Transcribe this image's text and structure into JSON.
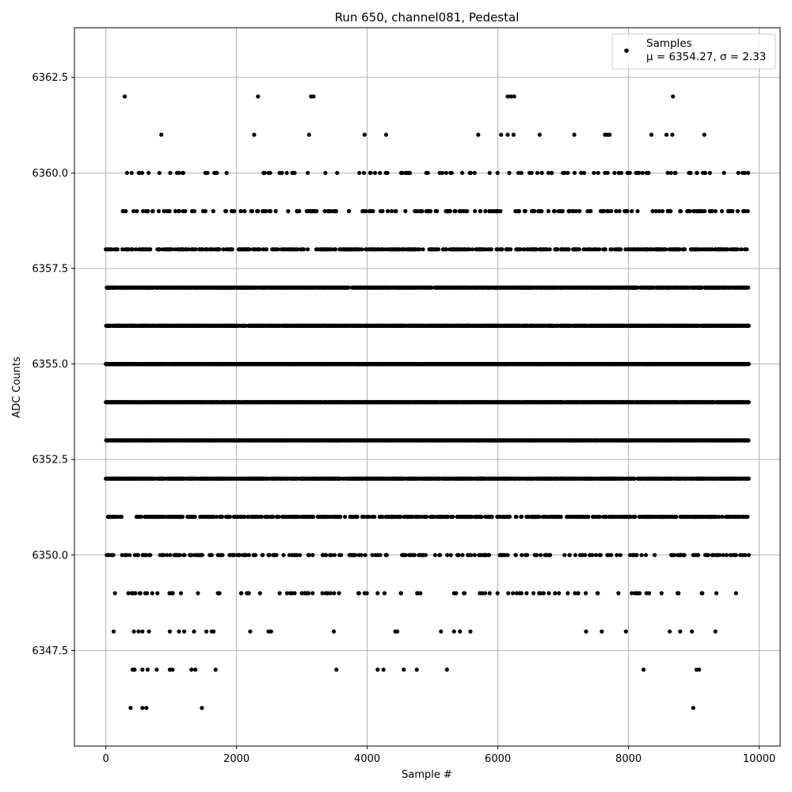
{
  "chart_data": {
    "type": "scatter",
    "title": "Run 650, channel081, Pedestal",
    "xlabel": "Sample #",
    "ylabel": "ADC Counts",
    "xlim": [
      -480,
      10320
    ],
    "ylim": [
      6345.0,
      6363.8
    ],
    "xticks": [
      0,
      2000,
      4000,
      6000,
      8000,
      10000
    ],
    "yticks": [
      6347.5,
      6350.0,
      6352.5,
      6355.0,
      6357.5,
      6360.0,
      6362.5
    ],
    "xtick_labels": [
      "0",
      "2000",
      "4000",
      "6000",
      "8000",
      "10000"
    ],
    "ytick_labels": [
      "6347.5",
      "6350.0",
      "6352.5",
      "6355.0",
      "6357.5",
      "6360.0",
      "6362.5"
    ],
    "grid": true,
    "legend_position": "top-right",
    "marker_color": "#000000",
    "series": [
      {
        "name": "Samples",
        "annotation": "μ = 6354.27, σ = 2.33",
        "x_range": [
          0,
          9840
        ],
        "points": [
          [
            290,
            6362
          ],
          [
            2330,
            6362
          ],
          [
            3140,
            6362
          ],
          [
            3180,
            6362
          ],
          [
            6150,
            6362
          ],
          [
            6200,
            6362
          ],
          [
            6250,
            6362
          ],
          [
            8680,
            6362
          ],
          [
            850,
            6361
          ],
          [
            2270,
            6361
          ],
          [
            3110,
            6361
          ],
          [
            3960,
            6361
          ],
          [
            4290,
            6361
          ],
          [
            5700,
            6361
          ],
          [
            6050,
            6361
          ],
          [
            6150,
            6361
          ],
          [
            6240,
            6361
          ],
          [
            6640,
            6361
          ],
          [
            7170,
            6361
          ],
          [
            7640,
            6361
          ],
          [
            7680,
            6361
          ],
          [
            7710,
            6361
          ],
          [
            8350,
            6361
          ],
          [
            8580,
            6361
          ],
          [
            8670,
            6361
          ],
          [
            9160,
            6361
          ],
          [
            380,
            6346
          ],
          [
            560,
            6346
          ],
          [
            620,
            6346
          ],
          [
            1470,
            6346
          ],
          [
            8990,
            6346
          ],
          [
            410,
            6347
          ],
          [
            440,
            6347
          ],
          [
            560,
            6347
          ],
          [
            640,
            6347
          ],
          [
            780,
            6347
          ],
          [
            980,
            6347
          ],
          [
            1020,
            6347
          ],
          [
            1310,
            6347
          ],
          [
            1370,
            6347
          ],
          [
            1680,
            6347
          ],
          [
            3530,
            6347
          ],
          [
            4160,
            6347
          ],
          [
            4250,
            6347
          ],
          [
            4560,
            6347
          ],
          [
            4760,
            6347
          ],
          [
            5220,
            6347
          ],
          [
            8230,
            6347
          ],
          [
            9040,
            6347
          ],
          [
            9080,
            6347
          ],
          [
            120,
            6348
          ],
          [
            430,
            6348
          ],
          [
            500,
            6348
          ],
          [
            560,
            6348
          ],
          [
            660,
            6348
          ],
          [
            980,
            6348
          ],
          [
            1120,
            6348
          ],
          [
            1200,
            6348
          ],
          [
            1350,
            6348
          ],
          [
            1540,
            6348
          ],
          [
            1620,
            6348
          ],
          [
            1650,
            6348
          ],
          [
            2210,
            6348
          ],
          [
            2490,
            6348
          ],
          [
            2530,
            6348
          ],
          [
            3490,
            6348
          ],
          [
            4430,
            6348
          ],
          [
            4460,
            6348
          ],
          [
            5130,
            6348
          ],
          [
            5330,
            6348
          ],
          [
            5420,
            6348
          ],
          [
            5580,
            6348
          ],
          [
            7350,
            6348
          ],
          [
            7590,
            6348
          ],
          [
            7960,
            6348
          ],
          [
            8630,
            6348
          ],
          [
            8790,
            6348
          ],
          [
            8970,
            6348
          ],
          [
            9330,
            6348
          ]
        ],
        "dense_levels": [
          {
            "y": 6360,
            "density": 0.01,
            "x_range": [
              250,
              9840
            ]
          },
          {
            "y": 6359,
            "density": 0.022,
            "x_range": [
              240,
              9840
            ]
          },
          {
            "y": 6358,
            "density": 0.05,
            "x_range": [
              0,
              9840
            ]
          },
          {
            "y": 6357,
            "density": 0.1,
            "x_range": [
              0,
              9840
            ]
          },
          {
            "y": 6356,
            "density": 0.15,
            "x_range": [
              0,
              9840
            ]
          },
          {
            "y": 6355,
            "density": 0.17,
            "x_range": [
              0,
              9840
            ]
          },
          {
            "y": 6354,
            "density": 0.17,
            "x_range": [
              0,
              9840
            ]
          },
          {
            "y": 6353,
            "density": 0.15,
            "x_range": [
              0,
              9840
            ]
          },
          {
            "y": 6352,
            "density": 0.1,
            "x_range": [
              0,
              9840
            ]
          },
          {
            "y": 6351,
            "density": 0.05,
            "x_range": [
              0,
              9840
            ]
          },
          {
            "y": 6350,
            "density": 0.025,
            "x_range": [
              0,
              9840
            ]
          },
          {
            "y": 6349,
            "density": 0.01,
            "x_range": [
              100,
              9700
            ]
          }
        ]
      }
    ]
  }
}
